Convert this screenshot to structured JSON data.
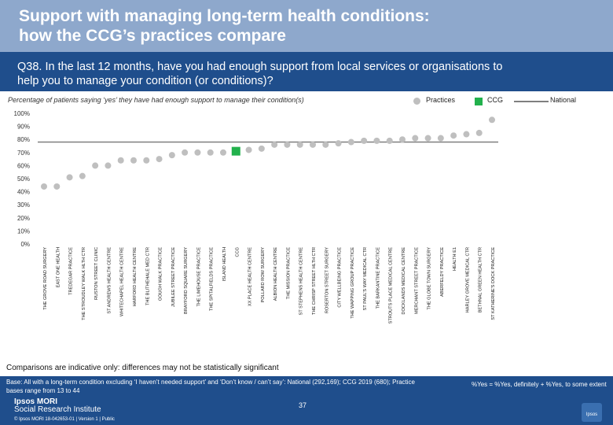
{
  "header": {
    "title_line1": "Support with managing long-term health conditions:",
    "title_line2": "how the CCG’s practices compare"
  },
  "question": {
    "line1": "Q38. In the last 12 months, have you had enough support from local services or organisations to",
    "line2": "help you to manage your condition (or conditions)?"
  },
  "subtitle": "Percentage of patients saying ‘yes’ they have had enough support to manage their condition(s)",
  "legend": {
    "practices": "Practices",
    "ccg": "CCG",
    "national": "National"
  },
  "comparisons_note": "Comparisons are indicative only: differences may not be statistically significant",
  "base_text": "Base: All with a long-term condition excluding ‘I haven’t needed support’ and ‘Don’t know / can’t say’: National (292,169); CCG 2019 (680); Practice bases range from 13 to 44",
  "yes_definition": "%Yes = %Yes, definitely + %Yes, to some extent",
  "footer": {
    "brand_line1": "Ipsos MORI",
    "brand_line2": "Social Research Institute",
    "copyright": "© Ipsos MORI     18-042653-01 | Version 1 | Public",
    "page_number": "37",
    "logo_text": "Ipsos"
  },
  "colors": {
    "practice": "#bfbfbf",
    "ccg": "#22b14c",
    "national": "#7f7f7f",
    "header_bg": "#8ea8cc",
    "question_bg": "#1f4e8c"
  },
  "chart_data": {
    "type": "scatter",
    "ylim": [
      0,
      100
    ],
    "yticks": [
      "0%",
      "10%",
      "20%",
      "30%",
      "40%",
      "50%",
      "60%",
      "70%",
      "80%",
      "90%",
      "100%"
    ],
    "grid": false,
    "legend_position": "top-right",
    "categories": [
      "THE GROVE ROAD SURGERY",
      "EAST ONE HEALTH",
      "TREDEGAR PRACTICE",
      "THE STROUDLEY WALK HLTH CTR",
      "RUSTON STREET CLINIC",
      "ST ANDREWS HEALTH CENTRE",
      "WHITECHAPEL HEALTH CENTRE",
      "HARFORD HEALTH CENTRE",
      "THE BLITHEHALE MED CTR",
      "GOUGH WALK PRACTICE",
      "JUBILEE STREET PRACTICE",
      "BRAYFORD SQUARE SURGERY",
      "THE LIMEHOUSE PRACTICE",
      "THE SPITALFIELDS PRACTICE",
      "ISLAND HEALTH",
      "CCG",
      "XX PLACE HEALTH CENTRE",
      "POLLARD ROW SURGERY",
      "ALBION HEALTH CENTRE",
      "THE MISSION PRACTICE",
      "ST STEPHENS HEALTH CENTRE",
      "THE CHRISP STREET HLTH CTR",
      "ROSERTON STREET SURGERY",
      "CITY WELLBEING PRACTICE",
      "THE WAPPING GROUP PRACTICE",
      "ST PAUL'S WAY MEDICAL CTR",
      "THE BARKANTINE PRACTICE",
      "STROUTS PLACE MEDICAL CENTRE",
      "DOCKLANDS MEDICAL CENTRE",
      "MERCHANT STREET PRACTICE",
      "THE GLOBE TOWN SURGERY",
      "ABERFELDY PRACTICE",
      "HEALTH E1",
      "HARLEY GROVE MEDICAL CTR",
      "BETHNAL GREEN HEALTH CTR",
      "ST KATHERINE'S DOCK PRACTICE"
    ],
    "series": [
      {
        "name": "Practices",
        "values": [
          44,
          44,
          51,
          52,
          60,
          60,
          64,
          64,
          64,
          65,
          68,
          70,
          70,
          70,
          70,
          null,
          72,
          73,
          76,
          76,
          76,
          76,
          76,
          77,
          78,
          79,
          79,
          79,
          80,
          81,
          81,
          81,
          83,
          84,
          85,
          95
        ]
      },
      {
        "name": "CCG",
        "values": [
          null,
          null,
          null,
          null,
          null,
          null,
          null,
          null,
          null,
          null,
          null,
          null,
          null,
          null,
          null,
          71,
          null,
          null,
          null,
          null,
          null,
          null,
          null,
          null,
          null,
          null,
          null,
          null,
          null,
          null,
          null,
          null,
          null,
          null,
          null,
          null
        ]
      },
      {
        "name": "National",
        "value": 78
      }
    ]
  }
}
